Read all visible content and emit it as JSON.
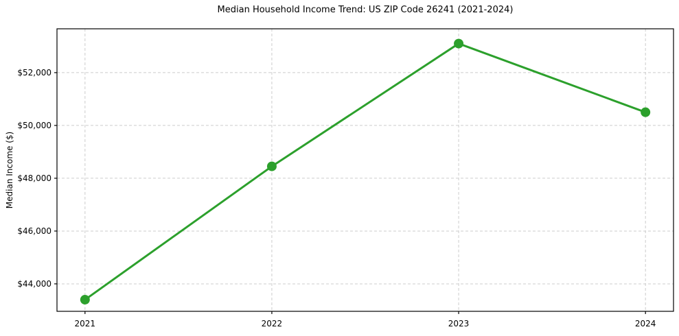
{
  "figure": {
    "title": "Median Household Income Trend: US ZIP Code 26241 (2021-2024)",
    "ylabel": "Median Income ($)"
  },
  "chart_data": {
    "type": "line",
    "title": "Median Household Income Trend: US ZIP Code 26241 (2021-2024)",
    "xlabel": "",
    "ylabel": "Median Income ($)",
    "categories": [
      "2021",
      "2022",
      "2023",
      "2024"
    ],
    "values": [
      43400,
      48450,
      53100,
      50500
    ],
    "yticks": [
      44000,
      46000,
      48000,
      50000,
      52000
    ],
    "ytick_labels": [
      "$44,000",
      "$46,000",
      "$48,000",
      "$50,000",
      "$52,000"
    ],
    "ylim": [
      42960,
      53660
    ],
    "x_margin": 0.05,
    "grid": true,
    "grid_style": "dashed",
    "legend_position": "none",
    "marker": "circle",
    "colors": {
      "line": "#2ca02c",
      "marker": "#2ca02c",
      "grid": "#cccccc",
      "axis": "#000000",
      "text": "#000000",
      "background": "#ffffff"
    }
  }
}
